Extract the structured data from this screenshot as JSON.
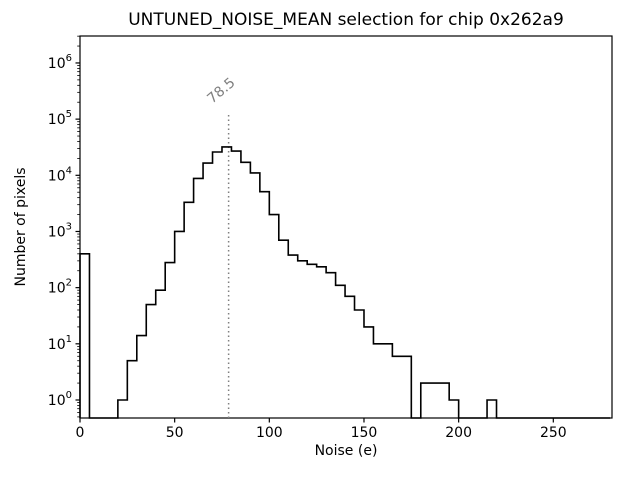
{
  "chart_data": {
    "type": "histogram-step",
    "title": "UNTUNED_NOISE_MEAN selection for chip 0x262a9",
    "xlabel": "Noise (e)",
    "ylabel": "Number of pixels",
    "yscale": "log",
    "grid": false,
    "legend": false,
    "xlim": [
      0,
      281
    ],
    "ylim": [
      0.478,
      3020000
    ],
    "x_ticks": [
      0,
      50,
      100,
      150,
      200,
      250
    ],
    "y_tick_exponents": [
      0,
      1,
      2,
      3,
      4,
      5,
      6
    ],
    "bin_start": 0,
    "bin_width": 5,
    "counts": [
      400,
      0,
      0,
      0,
      1,
      5,
      14,
      50,
      90,
      280,
      1000,
      3300,
      8800,
      16500,
      26000,
      32000,
      27000,
      17000,
      11000,
      5100,
      2000,
      700,
      380,
      300,
      260,
      235,
      185,
      110,
      70,
      40,
      20,
      10,
      10,
      6,
      6,
      0,
      2,
      2,
      2,
      1,
      0,
      0,
      0,
      1,
      0,
      0,
      0,
      0,
      0,
      0,
      0,
      0,
      0,
      0,
      0,
      0
    ],
    "line_color": "#000000",
    "background_color": "#ffffff",
    "vline": {
      "x": 78.5,
      "label": "78.5",
      "color": "#7f7f7f",
      "style": "dotted"
    }
  }
}
